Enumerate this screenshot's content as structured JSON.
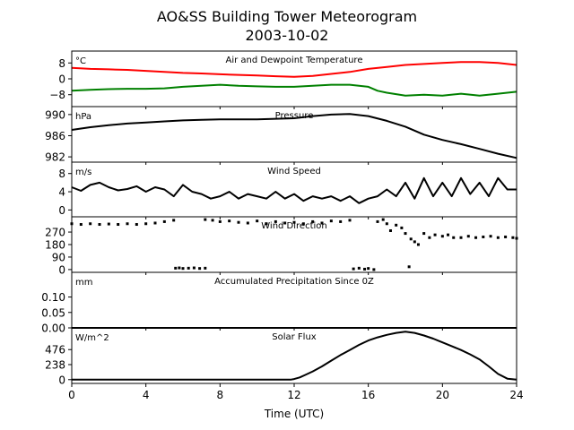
{
  "chart_data": {
    "type": "line",
    "title": "AO&SS Building Tower Meteorogram",
    "subtitle": "2003-10-02",
    "xlabel": "Time (UTC)",
    "xlim": [
      0,
      24
    ],
    "xticks": [
      "0",
      "4",
      "8",
      "12",
      "16",
      "20",
      "24"
    ],
    "colors": {
      "temperature": "#ff0000",
      "dewpoint": "#008000",
      "default": "#000000"
    },
    "panels": [
      {
        "id": "temp",
        "title": "Air and Dewpoint Temperature",
        "unit": "°C",
        "ylim": [
          -14,
          14
        ],
        "yticks": [
          8,
          0,
          -8
        ],
        "ytick_labels": [
          "8",
          "0",
          "−8"
        ],
        "series": [
          {
            "color": "#ff0000",
            "x": [
              0,
              1,
              2,
              3,
              4,
              5,
              6,
              7,
              8,
              9,
              10,
              11,
              12,
              13,
              14,
              15,
              16,
              17,
              18,
              19,
              20,
              21,
              22,
              23,
              24
            ],
            "y": [
              5.5,
              5,
              4.8,
              4.5,
              4,
              3.5,
              3,
              2.7,
              2.3,
              2,
              1.7,
              1.3,
              1,
              1.5,
              2.5,
              3.5,
              5,
              6,
              7,
              7.5,
              8,
              8.5,
              8.5,
              8,
              7
            ]
          },
          {
            "color": "#008000",
            "x": [
              0,
              1,
              2,
              3,
              4,
              5,
              6,
              7,
              8,
              9,
              10,
              11,
              12,
              13,
              14,
              15,
              16,
              16.5,
              17,
              18,
              19,
              20,
              21,
              22,
              23,
              24
            ],
            "y": [
              -6,
              -5.5,
              -5.2,
              -5,
              -5,
              -4.8,
              -4,
              -3.5,
              -3,
              -3.5,
              -3.8,
              -4,
              -4,
              -3.5,
              -3,
              -3,
              -4,
              -6,
              -7,
              -8.5,
              -8,
              -8.5,
              -7.5,
              -8.5,
              -7.5,
              -6.5
            ]
          }
        ]
      },
      {
        "id": "pressure",
        "title": "Pressure",
        "unit": "hPa",
        "ylim": [
          981,
          991.5
        ],
        "yticks": [
          990,
          986,
          982
        ],
        "ytick_labels": [
          "990",
          "986",
          "982"
        ],
        "series": [
          {
            "color": "#000000",
            "x": [
              0,
              1,
              2,
              3,
              4,
              5,
              6,
              7,
              8,
              9,
              10,
              11,
              12,
              13,
              14,
              15,
              16,
              17,
              18,
              19,
              20,
              21,
              22,
              23,
              24
            ],
            "y": [
              987.1,
              987.6,
              988,
              988.3,
              988.5,
              988.7,
              988.9,
              989,
              989.1,
              989.1,
              989.1,
              989.2,
              989.3,
              989.7,
              990,
              990.1,
              989.7,
              988.8,
              987.7,
              986.2,
              985.2,
              984.4,
              983.5,
              982.6,
              981.8
            ]
          }
        ]
      },
      {
        "id": "wind",
        "title": "Wind Speed",
        "unit": "m/s",
        "ylim": [
          -1.5,
          10.5
        ],
        "yticks": [
          8,
          4,
          0
        ],
        "ytick_labels": [
          "8",
          "4",
          "0"
        ],
        "series": [
          {
            "color": "#000000",
            "x": [
              0,
              0.5,
              1,
              1.5,
              2,
              2.5,
              3,
              3.5,
              4,
              4.5,
              5,
              5.5,
              6,
              6.5,
              7,
              7.5,
              8,
              8.5,
              9,
              9.5,
              10,
              10.5,
              11,
              11.5,
              12,
              12.5,
              13,
              13.5,
              14,
              14.5,
              15,
              15.5,
              16,
              16.5,
              17,
              17.5,
              18,
              18.5,
              19,
              19.5,
              20,
              20.5,
              21,
              21.5,
              22,
              22.5,
              23,
              23.5,
              24
            ],
            "y": [
              5,
              4.2,
              5.5,
              6,
              5,
              4.3,
              4.6,
              5.2,
              4,
              5,
              4.5,
              3,
              5.5,
              4,
              3.5,
              2.5,
              3,
              4,
              2.5,
              3.5,
              3,
              2.5,
              4,
              2.5,
              3.5,
              2,
              3,
              2.5,
              3,
              2,
              3,
              1.5,
              2.5,
              3,
              4.5,
              3,
              6,
              2.5,
              7,
              3,
              6,
              3,
              7,
              3.5,
              6,
              3,
              7,
              4.5,
              4.5
            ]
          }
        ]
      },
      {
        "id": "winddir",
        "title": "Wind Direction",
        "unit": "",
        "ylim": [
          -20,
          380
        ],
        "yticks": [
          270,
          180,
          90,
          0
        ],
        "ytick_labels": [
          "270",
          "180",
          "90",
          "0"
        ],
        "series": [
          {
            "color": "#000000",
            "style": "points",
            "x": [
              0,
              0.5,
              1,
              1.5,
              2,
              2.5,
              3,
              3.5,
              4,
              4.5,
              5,
              5.5,
              5.6,
              5.8,
              6,
              6.3,
              6.6,
              6.9,
              7.2,
              7.2,
              7.6,
              8,
              8.5,
              9,
              9.5,
              10,
              10.5,
              11,
              11.5,
              12,
              12.5,
              13,
              13.5,
              14,
              14.5,
              15,
              15.2,
              15.5,
              15.8,
              16,
              16.3,
              16.5,
              16.8,
              17,
              17.2,
              17.5,
              17.8,
              18,
              18.2,
              18.3,
              18.5,
              18.7,
              19,
              19.3,
              19.6,
              20,
              20.3,
              20.6,
              21,
              21.4,
              21.8,
              22.2,
              22.6,
              23,
              23.4,
              23.8,
              24
            ],
            "y": [
              330,
              325,
              330,
              325,
              328,
              325,
              330,
              325,
              330,
              335,
              345,
              355,
              10,
              12,
              8,
              10,
              12,
              8,
              10,
              360,
              355,
              345,
              350,
              340,
              335,
              350,
              330,
              345,
              335,
              340,
              330,
              345,
              335,
              350,
              345,
              355,
              5,
              10,
              3,
              8,
              0,
              345,
              360,
              330,
              280,
              320,
              300,
              260,
              20,
              220,
              200,
              180,
              260,
              230,
              250,
              240,
              250,
              230,
              230,
              240,
              230,
              235,
              240,
              230,
              235,
              230,
              225
            ]
          }
        ]
      },
      {
        "id": "precip",
        "title": "Accumulated Precipitation Since 0Z",
        "unit": "mm",
        "ylim": [
          0,
          0.18
        ],
        "yticks": [
          0.1,
          0.05,
          0.0
        ],
        "ytick_labels": [
          "0.10",
          "0.05",
          "0.00"
        ],
        "series": [
          {
            "color": "#000000",
            "x": [
              0,
              24
            ],
            "y": [
              0,
              0
            ]
          }
        ]
      },
      {
        "id": "solar",
        "title": "Solar Flux",
        "unit": "W/m^2",
        "ylim": [
          -60,
          820
        ],
        "yticks": [
          476,
          238,
          0
        ],
        "ytick_labels": [
          "476",
          "238",
          "0"
        ],
        "series": [
          {
            "color": "#000000",
            "x": [
              0,
              1,
              2,
              3,
              4,
              5,
              6,
              7,
              8,
              9,
              10,
              11,
              11.8,
              12,
              12.3,
              12.6,
              13,
              13.5,
              14,
              14.5,
              15,
              15.5,
              16,
              16.5,
              17,
              17.5,
              18,
              18.5,
              19,
              19.5,
              20,
              20.5,
              21,
              21.5,
              22,
              22.5,
              23,
              23.5,
              24
            ],
            "y": [
              0,
              0,
              0,
              0,
              0,
              0,
              0,
              0,
              0,
              0,
              0,
              0,
              0,
              10,
              35,
              75,
              130,
              210,
              300,
              390,
              470,
              550,
              620,
              670,
              710,
              740,
              760,
              740,
              700,
              650,
              590,
              530,
              470,
              400,
              320,
              210,
              90,
              15,
              0
            ]
          }
        ]
      }
    ]
  }
}
